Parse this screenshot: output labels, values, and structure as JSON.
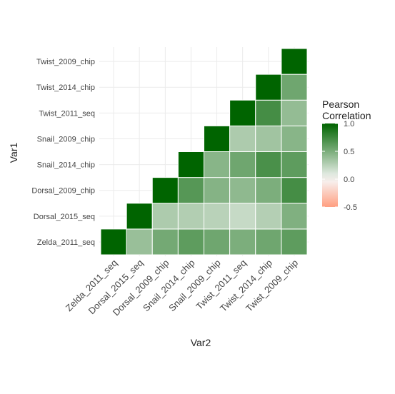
{
  "chart_data": {
    "type": "heatmap",
    "title": "",
    "xlabel": "Var2",
    "ylabel": "Var1",
    "x_categories": [
      "Zelda_2011_seq",
      "Dorsal_2015_seq",
      "Dorsal_2009_chip",
      "Snail_2014_chip",
      "Snail_2009_chip",
      "Twist_2011_seq",
      "Twist_2014_chip",
      "Twist_2009_chip"
    ],
    "y_categories": [
      "Zelda_2011_seq",
      "Dorsal_2015_seq",
      "Dorsal_2009_chip",
      "Snail_2014_chip",
      "Snail_2009_chip",
      "Twist_2011_seq",
      "Twist_2014_chip",
      "Twist_2009_chip"
    ],
    "matrix": [
      [
        1.0,
        0.38,
        0.53,
        0.62,
        0.55,
        0.5,
        0.55,
        0.62
      ],
      [
        null,
        1.0,
        0.3,
        0.28,
        0.25,
        0.2,
        0.27,
        0.48
      ],
      [
        null,
        null,
        1.0,
        0.65,
        0.46,
        0.42,
        0.5,
        0.72
      ],
      [
        null,
        null,
        null,
        1.0,
        0.45,
        0.55,
        0.7,
        0.62
      ],
      [
        null,
        null,
        null,
        null,
        1.0,
        0.3,
        0.35,
        0.45
      ],
      [
        null,
        null,
        null,
        null,
        null,
        1.0,
        0.72,
        0.4
      ],
      [
        null,
        null,
        null,
        null,
        null,
        null,
        1.0,
        0.55
      ],
      [
        null,
        null,
        null,
        null,
        null,
        null,
        null,
        1.0
      ]
    ],
    "color_scale": {
      "low": "#FF9E80",
      "mid": "#F7F7F7",
      "high": "#006400",
      "min": -0.5,
      "max": 1.0,
      "midpoint": 0
    },
    "legend": {
      "title_lines": [
        "Pearson",
        "Correlation"
      ],
      "ticks": [
        1.0,
        0.5,
        0.0,
        -0.5
      ],
      "tick_labels": [
        "1.0",
        "0.5",
        "0.0",
        "-0.5"
      ],
      "placement": "right"
    },
    "grid": true
  }
}
